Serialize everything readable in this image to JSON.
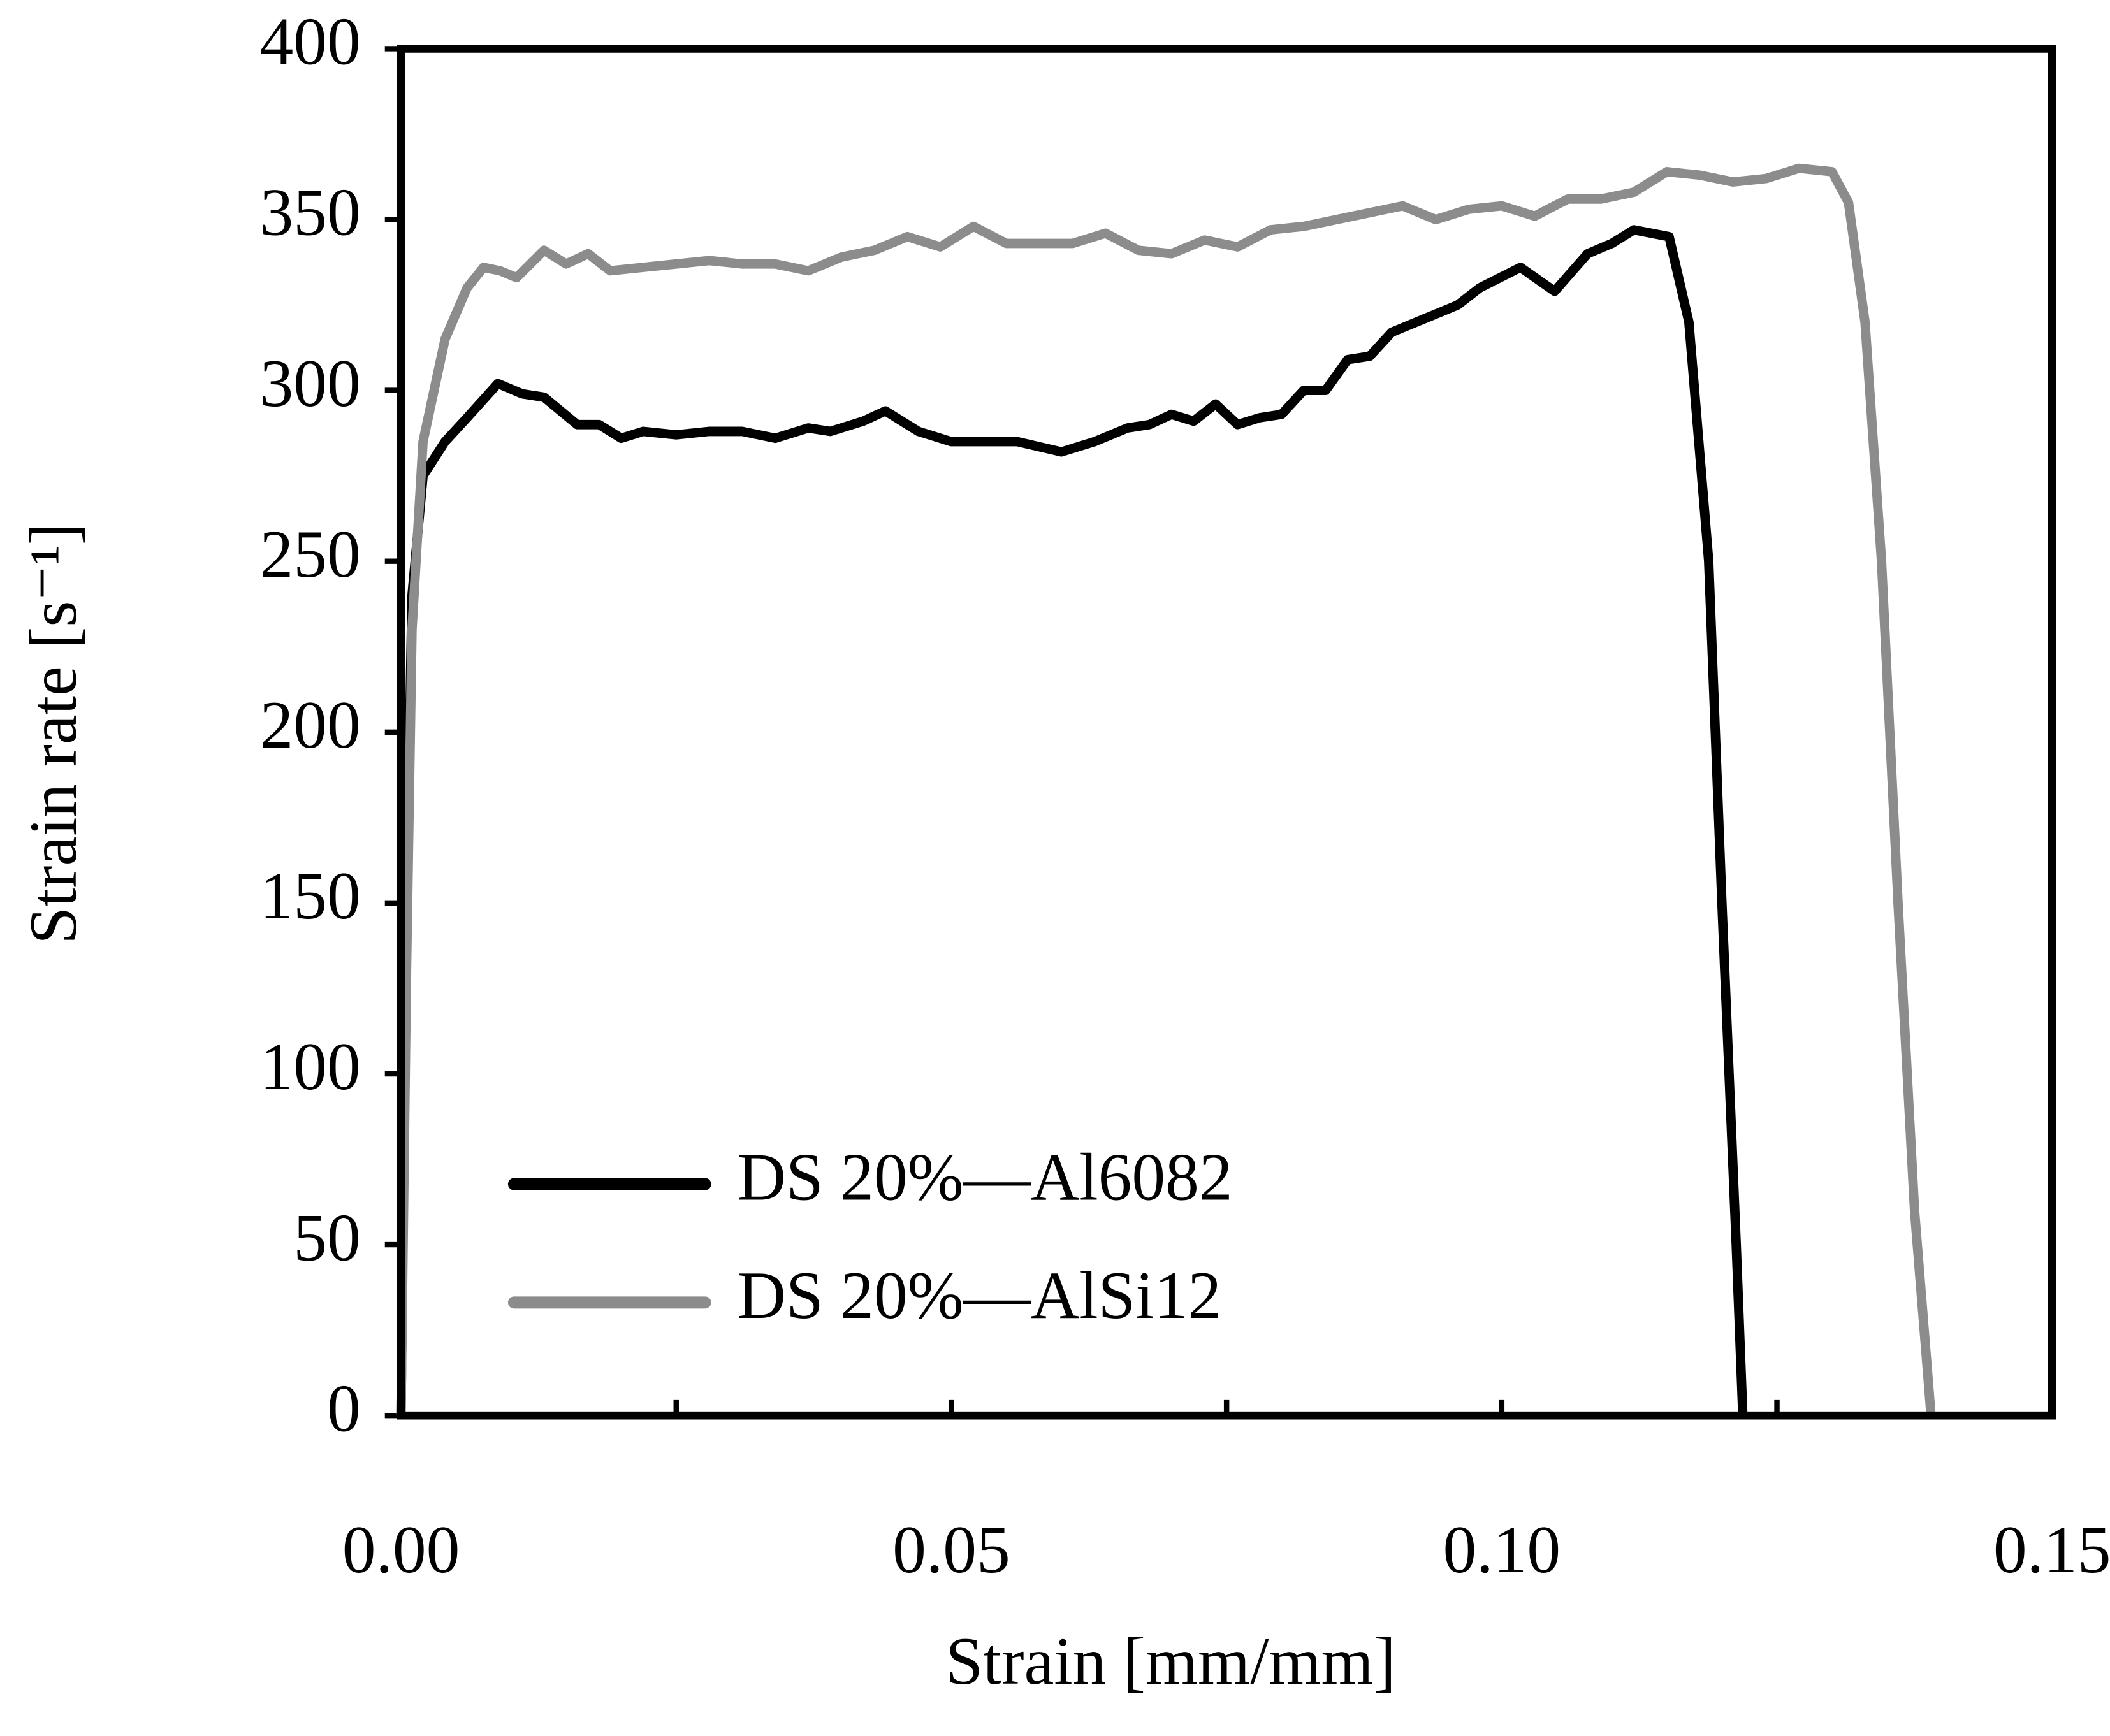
{
  "chart_data": {
    "type": "line",
    "xlabel": "Strain [mm/mm]",
    "ylabel": "Strain rate [s⁻¹]",
    "xlim": [
      0,
      0.15
    ],
    "ylim": [
      0,
      400
    ],
    "xticks": [
      {
        "value": 0,
        "label": "0.00"
      },
      {
        "value": 0.05,
        "label": "0.05"
      },
      {
        "value": 0.1,
        "label": "0.10"
      },
      {
        "value": 0.15,
        "label": "0.15"
      }
    ],
    "xminorticks": [
      0.025,
      0.075,
      0.125
    ],
    "yticks": [
      0,
      50,
      100,
      150,
      200,
      250,
      300,
      350,
      400
    ],
    "legend": "lower-left",
    "series": [
      {
        "name": "DS 20%—Al6082",
        "color": "#000000",
        "x": [
          0,
          0.0005,
          0.001,
          0.002,
          0.004,
          0.006,
          0.0088,
          0.011,
          0.013,
          0.016,
          0.018,
          0.02,
          0.022,
          0.025,
          0.028,
          0.031,
          0.034,
          0.037,
          0.039,
          0.042,
          0.044,
          0.047,
          0.05,
          0.053,
          0.056,
          0.06,
          0.063,
          0.066,
          0.068,
          0.07,
          0.072,
          0.074,
          0.076,
          0.078,
          0.08,
          0.082,
          0.084,
          0.086,
          0.088,
          0.09,
          0.093,
          0.096,
          0.098,
          0.1017,
          0.1048,
          0.1078,
          0.11,
          0.112,
          0.1152,
          0.117,
          0.1188,
          0.12,
          0.1213,
          0.1219
        ],
        "values": [
          0,
          150,
          240,
          275,
          285,
          292,
          302,
          299,
          298,
          290,
          290,
          286,
          288,
          287,
          288,
          288,
          286,
          289,
          288,
          291,
          294,
          288,
          285,
          285,
          285,
          282,
          285,
          289,
          290,
          293,
          291,
          296,
          290,
          292,
          293,
          300,
          300,
          309,
          310,
          317,
          321,
          325,
          330,
          336,
          329,
          340,
          343,
          347,
          345,
          320,
          250,
          150,
          50,
          0
        ]
      },
      {
        "name": "DS 20%—AlSi12",
        "color": "#8c8c8c",
        "x": [
          0,
          0.0005,
          0.001,
          0.002,
          0.004,
          0.006,
          0.0075,
          0.009,
          0.0105,
          0.013,
          0.015,
          0.017,
          0.019,
          0.022,
          0.025,
          0.028,
          0.031,
          0.034,
          0.037,
          0.04,
          0.043,
          0.046,
          0.049,
          0.052,
          0.055,
          0.058,
          0.061,
          0.064,
          0.067,
          0.07,
          0.073,
          0.076,
          0.079,
          0.082,
          0.085,
          0.088,
          0.091,
          0.094,
          0.097,
          0.1,
          0.103,
          0.106,
          0.109,
          0.112,
          0.115,
          0.118,
          0.121,
          0.124,
          0.127,
          0.13,
          0.1315,
          0.133,
          0.1345,
          0.136,
          0.1375,
          0.139
        ],
        "values": [
          0,
          130,
          230,
          285,
          315,
          330,
          336,
          335,
          333,
          341,
          337,
          340,
          335,
          336,
          337,
          338,
          337,
          337,
          335,
          339,
          341,
          345,
          342,
          348,
          343,
          343,
          343,
          346,
          341,
          340,
          344,
          342,
          347,
          348,
          350,
          352,
          354,
          350,
          353,
          354,
          351,
          356,
          356,
          358,
          364,
          363,
          361,
          362,
          365,
          364,
          355,
          320,
          250,
          150,
          60,
          0
        ]
      }
    ]
  }
}
